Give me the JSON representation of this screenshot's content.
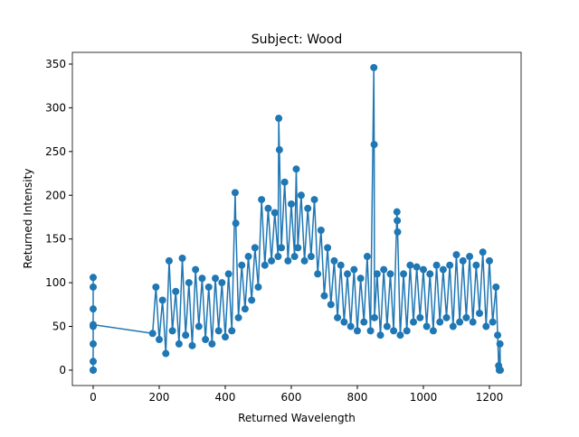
{
  "chart_data": {
    "type": "line",
    "title": "Subject: Wood",
    "xlabel": "Returned Wavelength",
    "ylabel": "Returned Intensity",
    "xlim": [
      -63,
      1296
    ],
    "ylim": [
      -17.6,
      363.4
    ],
    "xticks": [
      0,
      200,
      400,
      600,
      800,
      1000,
      1200
    ],
    "yticks": [
      0,
      50,
      100,
      150,
      200,
      250,
      300,
      350
    ],
    "series": [
      {
        "color": "#1f77b4",
        "x": [
          0,
          0,
          0,
          0,
          0,
          0,
          0,
          0,
          0,
          180,
          190,
          200,
          210,
          220,
          230,
          240,
          250,
          260,
          270,
          280,
          290,
          300,
          310,
          320,
          330,
          340,
          350,
          360,
          370,
          380,
          390,
          400,
          410,
          420,
          430,
          432,
          440,
          450,
          460,
          470,
          480,
          490,
          500,
          510,
          520,
          530,
          540,
          550,
          560,
          562,
          564,
          570,
          580,
          590,
          600,
          610,
          615,
          620,
          630,
          640,
          650,
          660,
          670,
          680,
          690,
          700,
          710,
          720,
          730,
          740,
          750,
          760,
          770,
          780,
          790,
          800,
          810,
          820,
          830,
          840,
          850,
          851,
          852,
          860,
          870,
          880,
          890,
          900,
          910,
          920,
          921,
          922,
          930,
          940,
          950,
          960,
          970,
          980,
          990,
          1000,
          1010,
          1020,
          1030,
          1040,
          1050,
          1060,
          1070,
          1080,
          1090,
          1100,
          1110,
          1120,
          1130,
          1140,
          1150,
          1160,
          1170,
          1180,
          1190,
          1200,
          1210,
          1220,
          1225,
          1228,
          1230,
          1232,
          1233
        ],
        "values": [
          106,
          0,
          50,
          95,
          30,
          70,
          10,
          0,
          52,
          42,
          95,
          35,
          80,
          19,
          125,
          45,
          90,
          30,
          128,
          40,
          100,
          28,
          115,
          50,
          105,
          35,
          95,
          30,
          105,
          45,
          100,
          38,
          110,
          45,
          203,
          168,
          60,
          120,
          70,
          130,
          80,
          140,
          95,
          195,
          120,
          185,
          125,
          180,
          130,
          288,
          252,
          140,
          215,
          125,
          190,
          130,
          230,
          140,
          200,
          125,
          185,
          130,
          195,
          110,
          160,
          85,
          140,
          75,
          125,
          60,
          120,
          55,
          110,
          50,
          115,
          45,
          105,
          55,
          130,
          45,
          346,
          258,
          60,
          110,
          40,
          115,
          50,
          110,
          45,
          181,
          171,
          158,
          40,
          110,
          45,
          120,
          55,
          118,
          60,
          115,
          50,
          110,
          45,
          120,
          55,
          115,
          60,
          120,
          50,
          132,
          55,
          125,
          60,
          130,
          55,
          120,
          65,
          135,
          50,
          125,
          55,
          95,
          40,
          5,
          0,
          30,
          0
        ]
      }
    ]
  }
}
